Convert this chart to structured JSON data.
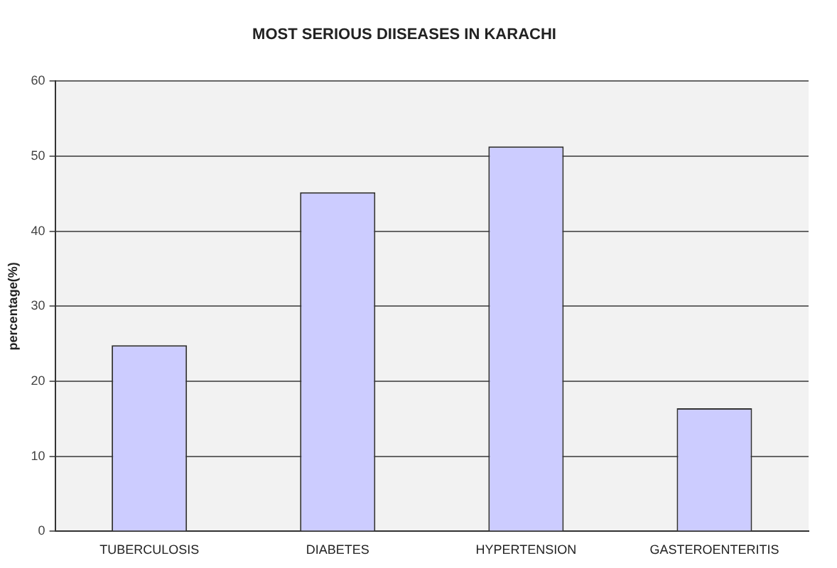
{
  "chart_data": {
    "type": "bar",
    "title": "MOST SERIOUS DIISEASES IN KARACHI",
    "ylabel": "percentage(%)",
    "categories": [
      "TUBERCULOSIS",
      "DIABETES",
      "HYPERTENSION",
      "GASTEROENTERITIS"
    ],
    "values": [
      24.8,
      45.2,
      51.3,
      16.4
    ],
    "color": "#ccccff",
    "ylim": [
      0,
      60
    ],
    "yticks": [
      0,
      10,
      20,
      30,
      40,
      50,
      60
    ],
    "grid": "y",
    "legend": false
  }
}
